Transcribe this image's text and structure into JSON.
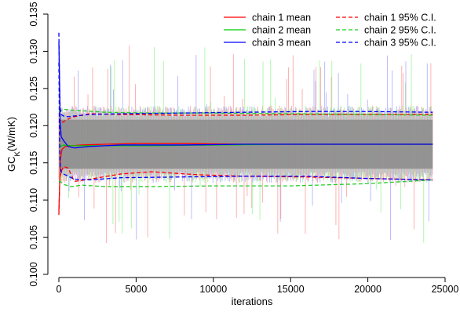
{
  "chart_data": {
    "type": "line",
    "title": "",
    "xlabel": "iterations",
    "ylabel": {
      "main": "GC",
      "sub": "K",
      "rest": "(W/mK)"
    },
    "xlim": [
      0,
      25000
    ],
    "ylim": [
      0.1,
      0.135
    ],
    "x_ticks": [
      0,
      5000,
      10000,
      15000,
      20000,
      25000
    ],
    "y_ticks": [
      0.1,
      0.105,
      0.11,
      0.115,
      0.12,
      0.125,
      0.13,
      0.135
    ],
    "x_tick_labels": [
      "0",
      "5000",
      "10000",
      "15000",
      "20000",
      "25000"
    ],
    "y_tick_labels": [
      "0.100",
      "0.105",
      "0.110",
      "0.115",
      "0.120",
      "0.125",
      "0.130",
      "0.135"
    ],
    "grid": false,
    "legend_position": "top-right",
    "iterations": 24200,
    "trace": {
      "band_color": "#8c8c8c",
      "center": 0.1175,
      "core_low": 0.1138,
      "core_high": 0.1212,
      "chain_colors": [
        "#ff9a9a",
        "#9af59a",
        "#a7a7ff"
      ]
    },
    "series": [
      {
        "name": "chain 1 mean",
        "color": "#ff0000",
        "dash": "solid",
        "x": [
          0,
          100,
          200,
          400,
          800,
          1500,
          3000,
          5000,
          8000,
          12000,
          16000,
          20000,
          24200
        ],
        "y": [
          0.1085,
          0.1155,
          0.1168,
          0.1172,
          0.1173,
          0.1174,
          0.1175,
          0.1176,
          0.1176,
          0.1175,
          0.1175,
          0.1175,
          0.1175
        ]
      },
      {
        "name": "chain 1 95% C.I.",
        "color": "#ff0000",
        "dash": "dashed",
        "x": [
          0,
          60,
          150,
          300,
          600,
          1000,
          2000,
          4000,
          6000,
          9000,
          12000,
          16000,
          20000,
          24200
        ],
        "y": [
          0.108,
          0.113,
          0.1138,
          0.1145,
          0.1143,
          0.1125,
          0.1128,
          0.1135,
          0.1138,
          0.1134,
          0.1132,
          0.1131,
          0.1129,
          0.1127
        ]
      },
      {
        "name": "chain 1 95% C.I.",
        "color": "#ff0000",
        "dash": "dashed",
        "x": [
          0,
          80,
          200,
          500,
          1000,
          2000,
          4000,
          8000,
          12000,
          16000,
          20000,
          24200
        ],
        "y": [
          0.1205,
          0.1208,
          0.1204,
          0.1208,
          0.1212,
          0.1216,
          0.1215,
          0.1214,
          0.1214,
          0.1215,
          0.1215,
          0.1215
        ]
      },
      {
        "name": "chain 2 mean",
        "color": "#00cc00",
        "dash": "solid",
        "x": [
          0,
          100,
          300,
          800,
          1500,
          3000,
          6000,
          10000,
          15000,
          20000,
          24200
        ],
        "y": [
          0.1172,
          0.1172,
          0.1174,
          0.1173,
          0.1173,
          0.1173,
          0.1173,
          0.1174,
          0.1175,
          0.1175,
          0.1175
        ]
      },
      {
        "name": "chain 2 95% C.I.",
        "color": "#22cc22",
        "dash": "dashed",
        "x": [
          0,
          100,
          300,
          800,
          1500,
          3000,
          6000,
          10000,
          15000,
          20000,
          24200
        ],
        "y": [
          0.1125,
          0.1125,
          0.1121,
          0.1118,
          0.112,
          0.1118,
          0.1118,
          0.1119,
          0.1119,
          0.1122,
          0.1127
        ]
      },
      {
        "name": "chain 2 95% C.I.",
        "color": "#22cc22",
        "dash": "dashed",
        "x": [
          0,
          100,
          300,
          800,
          1500,
          3000,
          6000,
          10000,
          15000,
          20000,
          24200
        ],
        "y": [
          0.1218,
          0.122,
          0.1222,
          0.1221,
          0.122,
          0.1218,
          0.1217,
          0.1217,
          0.1216,
          0.1215,
          0.1214
        ]
      },
      {
        "name": "chain 3 mean",
        "color": "#0000ff",
        "dash": "solid",
        "x": [
          0,
          40,
          80,
          150,
          300,
          600,
          1000,
          2000,
          4000,
          8000,
          12000,
          16000,
          20000,
          24200
        ],
        "y": [
          0.1312,
          0.1265,
          0.1205,
          0.1185,
          0.118,
          0.1172,
          0.117,
          0.1172,
          0.1174,
          0.1174,
          0.1175,
          0.1175,
          0.1175,
          0.1175
        ]
      },
      {
        "name": "chain 3 95% C.I.",
        "color": "#0000ff",
        "dash": "dashed",
        "x": [
          0,
          40,
          80,
          150,
          300,
          600,
          1000,
          2000,
          4000,
          8000,
          12000,
          16000,
          20000,
          24200
        ],
        "y": [
          0.1285,
          0.1185,
          0.1148,
          0.1138,
          0.1135,
          0.1132,
          0.1128,
          0.1127,
          0.113,
          0.1131,
          0.1132,
          0.1132,
          0.1129,
          0.1127
        ]
      },
      {
        "name": "chain 3 95% C.I.",
        "color": "#0000ff",
        "dash": "dashed",
        "x": [
          0,
          40,
          80,
          150,
          300,
          600,
          1000,
          2000,
          4000,
          8000,
          12000,
          16000,
          20000,
          24200
        ],
        "y": [
          0.1325,
          0.126,
          0.1225,
          0.1215,
          0.1213,
          0.1212,
          0.1213,
          0.1215,
          0.1216,
          0.1217,
          0.1218,
          0.1219,
          0.1219,
          0.1218
        ]
      }
    ],
    "legend": [
      {
        "label": "chain 1 mean",
        "color": "#ff0000",
        "dash": "solid"
      },
      {
        "label": "chain 1 95% C.I.",
        "color": "#ff0000",
        "dash": "dashed"
      },
      {
        "label": "chain 2 mean",
        "color": "#00cc00",
        "dash": "solid"
      },
      {
        "label": "chain 2 95% C.I.",
        "color": "#22cc22",
        "dash": "dashed"
      },
      {
        "label": "chain 3 mean",
        "color": "#0000ff",
        "dash": "solid"
      },
      {
        "label": "chain 3 95% C.I.",
        "color": "#0000ff",
        "dash": "dashed"
      }
    ]
  }
}
